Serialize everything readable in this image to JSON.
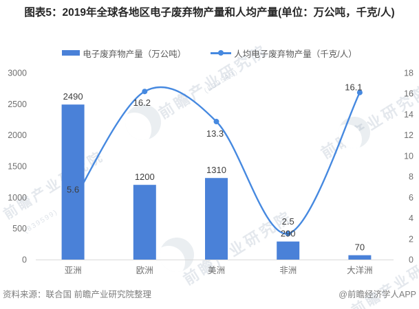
{
  "title": "图表5：2019年全球各地区电子废弃物产量和人均产量(单位：万公吨，千克/人)",
  "legend": {
    "bar_label": "电子废弃物产量（万公吨）",
    "line_label": "人均电子废弃物产量（千克/人）"
  },
  "footer": {
    "source": "资料来源：联合国 前瞻产业研究院整理",
    "credit": "@前瞻经济学人APP"
  },
  "watermark": {
    "text": "前瞻产业研究院",
    "digits": "(839599)"
  },
  "colors": {
    "bar": "#4a81d8",
    "line": "#4689e0",
    "axis_line": "#d9d9d9",
    "tick_text": "#6f6f6f",
    "data_label": "#3d3d3d",
    "title_text": "#262626",
    "legend_text": "#595959",
    "footer_text": "#7d7d7d"
  },
  "chart_data": {
    "type": "bar",
    "combo": "bar+line",
    "title": "2019年全球各地区电子废弃物产量和人均产量",
    "categories": [
      "亚洲",
      "欧洲",
      "美洲",
      "非洲",
      "大洋洲"
    ],
    "series": [
      {
        "name": "电子废弃物产量（万公吨）",
        "type": "bar",
        "y_axis": "left",
        "values": [
          2490,
          1200,
          1310,
          290,
          70
        ]
      },
      {
        "name": "人均电子废弃物产量（千克/人）",
        "type": "line",
        "y_axis": "right",
        "smooth": true,
        "values": [
          5.6,
          16.2,
          13.3,
          2.5,
          16.1
        ]
      }
    ],
    "xlabel": "",
    "ylabel_left": "电子废弃物产量（万公吨）",
    "ylabel_right": "人均电子废弃物产量（千克/人）",
    "y_left": {
      "min": 0,
      "max": 3000,
      "step": 500
    },
    "y_right": {
      "min": 0,
      "max": 18,
      "step": 2
    },
    "grid": false,
    "legend_position": "top"
  }
}
